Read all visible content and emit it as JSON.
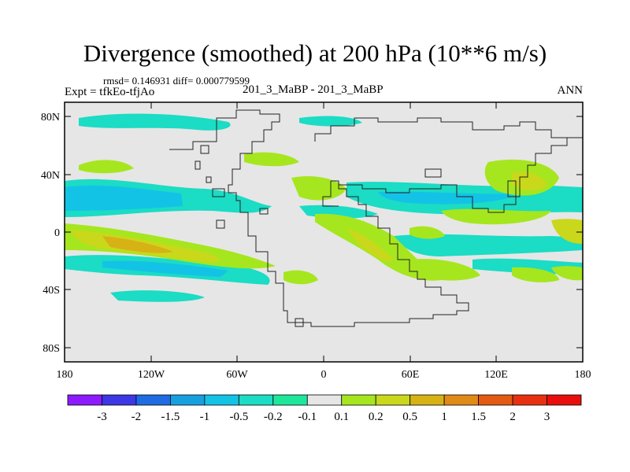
{
  "title": "Divergence (smoothed) at 200 hPa (10**6 m/s)",
  "stats": "rmsd= 0.146931 diff= 0.000779599",
  "expt": "Expt = tfkEo-tfjAo",
  "case": "201_3_MaBP - 201_3_MaBP",
  "season": "ANN",
  "map": {
    "lat_ticks": [
      "80N",
      "40N",
      "0",
      "40S",
      "80S"
    ],
    "lon_ticks": [
      "180",
      "120W",
      "60W",
      "0",
      "60E",
      "120E",
      "180"
    ]
  },
  "colorbar": {
    "labels": [
      "-3",
      "-2",
      "-1.5",
      "-1",
      "-0.5",
      "-0.2",
      "-0.1",
      "0.1",
      "0.2",
      "0.5",
      "1",
      "1.5",
      "2",
      "3"
    ],
    "colors": [
      "#8c1bff",
      "#3d37e6",
      "#1e6be3",
      "#17a0e0",
      "#13c3e6",
      "#1bdcc4",
      "#1de79b",
      "#e6e6e6",
      "#a6e61e",
      "#c9d81b",
      "#d6b215",
      "#e08a17",
      "#e35a12",
      "#e83010",
      "#e80e0e"
    ]
  }
}
